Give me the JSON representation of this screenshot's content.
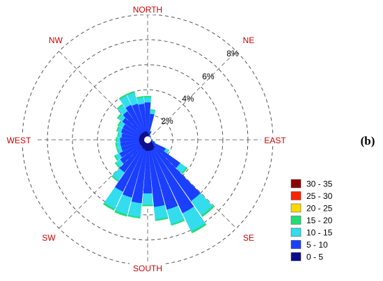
{
  "panel_label": "(b)",
  "chart_data": {
    "type": "wind-rose",
    "directions_labeled": [
      "NORTH",
      "NE",
      "EAST",
      "SE",
      "SOUTH",
      "SW",
      "WEST",
      "NW"
    ],
    "radial_ticks": [
      2,
      4,
      6,
      8
    ],
    "radial_tick_labels": [
      "2%",
      "4%",
      "6%",
      "8%"
    ],
    "rmax": 10,
    "num_sectors": 36,
    "legend": [
      {
        "label": "30 - 35",
        "color": "#8b0000"
      },
      {
        "label": "25 - 30",
        "color": "#ff2200"
      },
      {
        "label": "20 - 25",
        "color": "#ffd700"
      },
      {
        "label": "15 - 20",
        "color": "#22dd77"
      },
      {
        "label": "10 - 15",
        "color": "#33ddee"
      },
      {
        "label": "5 - 10",
        "color": "#1a3fff"
      },
      {
        "label": "0 - 5",
        "color": "#0b0b8c"
      }
    ],
    "band_colors": [
      "#0b0b8c",
      "#1a3fff",
      "#33ddee",
      "#22dd77"
    ],
    "sectors": [
      {
        "dir": 0,
        "values": [
          0.6,
          2.4,
          0.4,
          0.1
        ]
      },
      {
        "dir": 10,
        "values": [
          0.5,
          1.6,
          0.3,
          0.05
        ]
      },
      {
        "dir": 20,
        "values": [
          0.3,
          0.4,
          0.05,
          0
        ]
      },
      {
        "dir": 30,
        "values": [
          0.2,
          0.2,
          0,
          0
        ]
      },
      {
        "dir": 40,
        "values": [
          0.2,
          0.15,
          0,
          0
        ]
      },
      {
        "dir": 50,
        "values": [
          0.2,
          0.1,
          0,
          0
        ]
      },
      {
        "dir": 60,
        "values": [
          0.2,
          0.1,
          0,
          0
        ]
      },
      {
        "dir": 70,
        "values": [
          0.2,
          0.1,
          0,
          0
        ]
      },
      {
        "dir": 80,
        "values": [
          0.2,
          0.1,
          0,
          0
        ]
      },
      {
        "dir": 90,
        "values": [
          0.2,
          0.1,
          0,
          0
        ]
      },
      {
        "dir": 100,
        "values": [
          0.25,
          0.15,
          0,
          0
        ]
      },
      {
        "dir": 110,
        "values": [
          0.3,
          0.3,
          0.05,
          0
        ]
      },
      {
        "dir": 120,
        "values": [
          0.4,
          1.2,
          0.25,
          0.05
        ]
      },
      {
        "dir": 130,
        "values": [
          0.6,
          2.6,
          0.6,
          0.1
        ]
      },
      {
        "dir": 140,
        "values": [
          0.8,
          5.2,
          1.4,
          0.15
        ]
      },
      {
        "dir": 150,
        "values": [
          0.9,
          5.6,
          1.6,
          0.15
        ]
      },
      {
        "dir": 160,
        "values": [
          0.9,
          4.9,
          1.2,
          0.1
        ]
      },
      {
        "dir": 170,
        "values": [
          0.9,
          4.5,
          1.0,
          0.1
        ]
      },
      {
        "dir": 180,
        "values": [
          0.9,
          3.4,
          0.9,
          0.1
        ]
      },
      {
        "dir": 190,
        "values": [
          0.9,
          4.2,
          1.1,
          0.1
        ]
      },
      {
        "dir": 200,
        "values": [
          0.8,
          4.0,
          1.4,
          0.15
        ]
      },
      {
        "dir": 210,
        "values": [
          0.8,
          3.8,
          1.5,
          0.15
        ]
      },
      {
        "dir": 220,
        "values": [
          0.7,
          2.5,
          0.8,
          0.1
        ]
      },
      {
        "dir": 230,
        "values": [
          0.7,
          2.0,
          0.4,
          0.1
        ]
      },
      {
        "dir": 240,
        "values": [
          0.7,
          1.8,
          0.35,
          0.1
        ]
      },
      {
        "dir": 250,
        "values": [
          0.7,
          1.5,
          0.3,
          0.08
        ]
      },
      {
        "dir": 260,
        "values": [
          0.7,
          1.5,
          0.3,
          0.08
        ]
      },
      {
        "dir": 270,
        "values": [
          0.7,
          1.5,
          0.25,
          0.08
        ]
      },
      {
        "dir": 280,
        "values": [
          0.7,
          1.4,
          0.25,
          0.08
        ]
      },
      {
        "dir": 290,
        "values": [
          0.7,
          1.5,
          0.3,
          0.08
        ]
      },
      {
        "dir": 300,
        "values": [
          0.7,
          1.5,
          0.35,
          0.1
        ]
      },
      {
        "dir": 310,
        "values": [
          0.7,
          1.8,
          0.4,
          0.1
        ]
      },
      {
        "dir": 320,
        "values": [
          0.7,
          2.1,
          0.6,
          0.1
        ]
      },
      {
        "dir": 330,
        "values": [
          0.7,
          2.4,
          0.8,
          0.12
        ]
      },
      {
        "dir": 340,
        "values": [
          0.7,
          2.3,
          0.9,
          0.12
        ]
      },
      {
        "dir": 350,
        "values": [
          0.7,
          2.2,
          0.5,
          0.1
        ]
      }
    ]
  }
}
